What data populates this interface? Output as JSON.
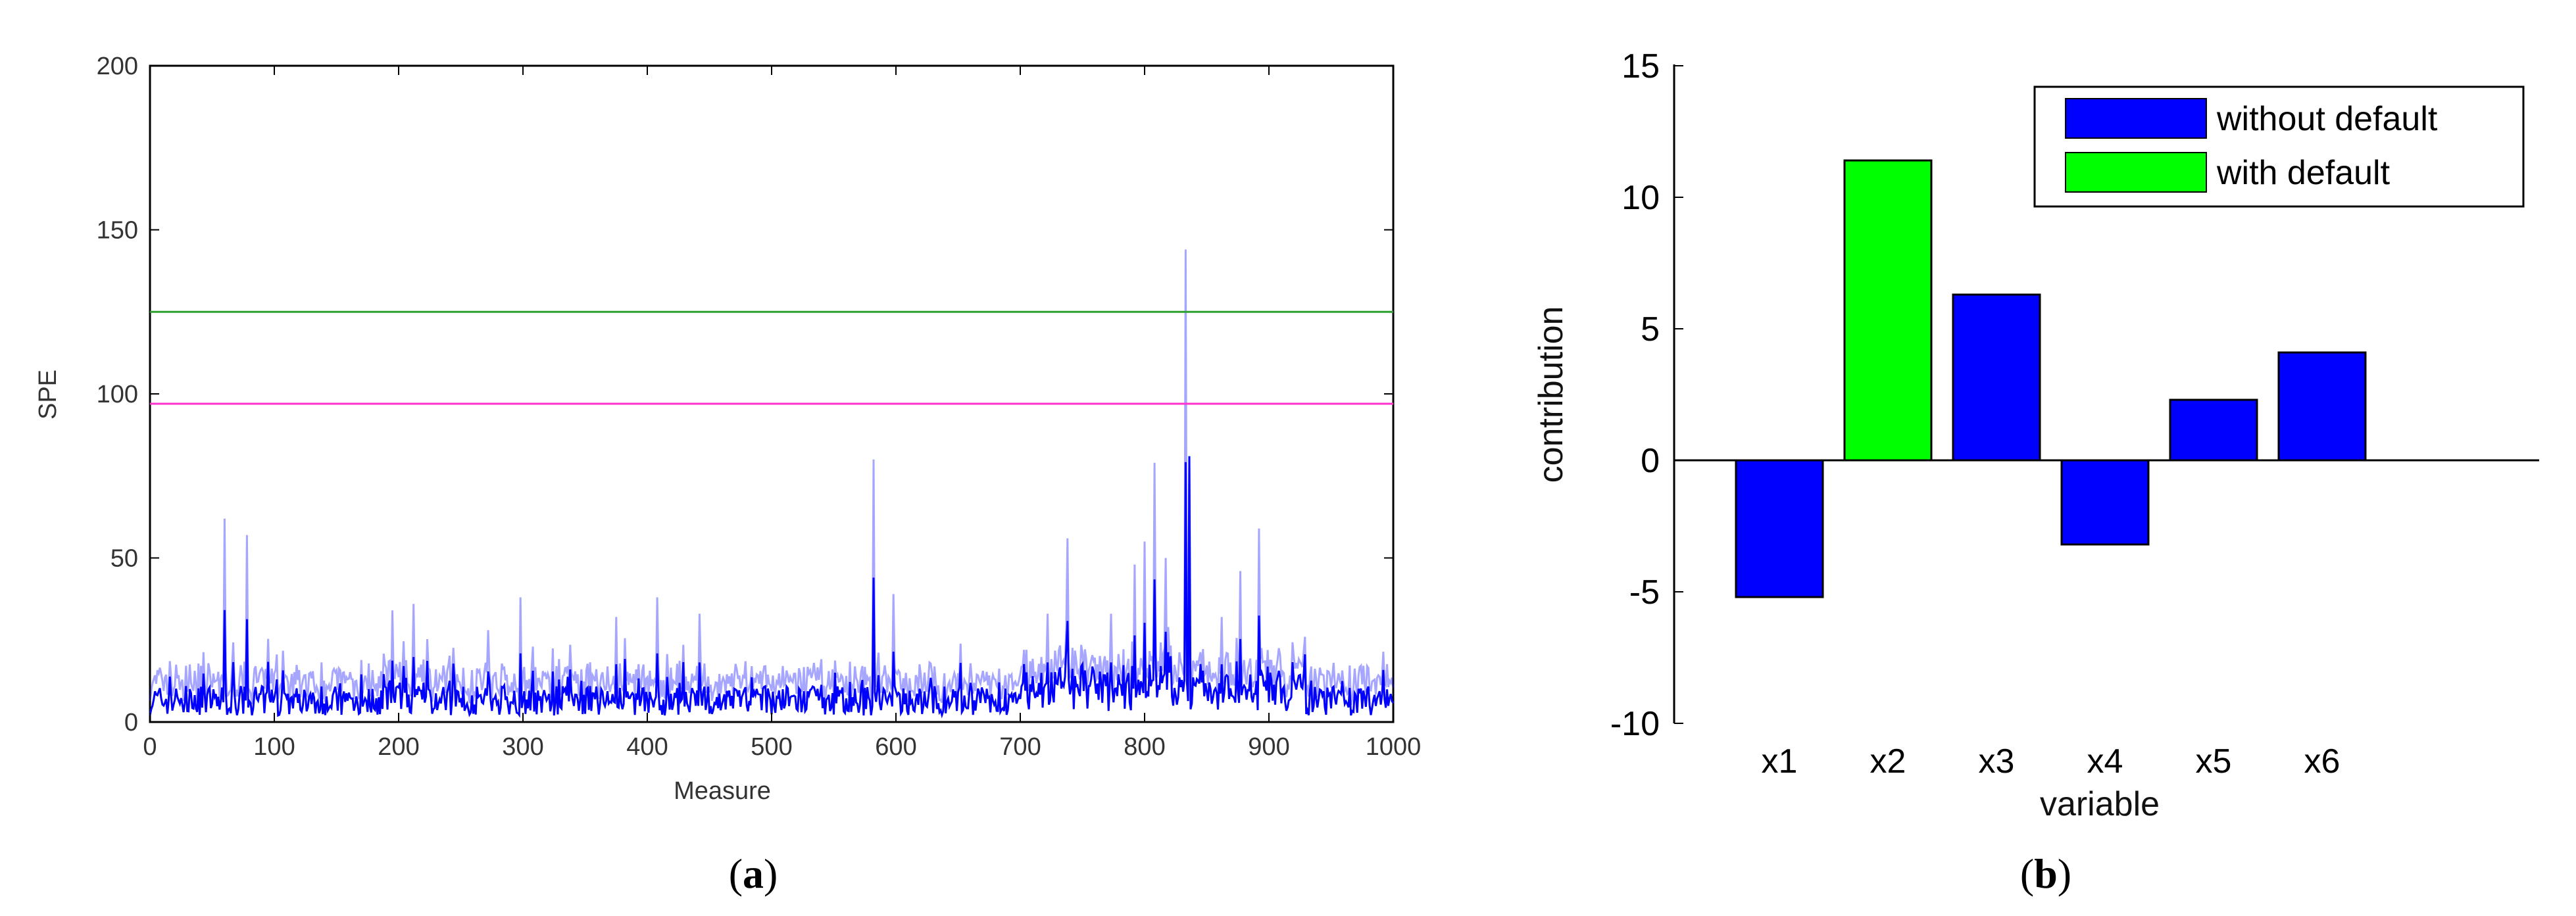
{
  "chart_data": [
    {
      "panel": "a",
      "caption_open": "(",
      "caption_letter": "a",
      "caption_close": ")",
      "type": "line",
      "xlabel": "Measure",
      "ylabel": "SPE",
      "xlim": [
        0,
        1000
      ],
      "ylim": [
        0,
        200
      ],
      "x_ticks": [
        0,
        100,
        200,
        300,
        400,
        500,
        600,
        700,
        800,
        900,
        1000
      ],
      "y_ticks": [
        0,
        50,
        100,
        150,
        200
      ],
      "thresholds": [
        {
          "value": 125,
          "color": "#2ca02c"
        },
        {
          "value": 97,
          "color": "#ff33cc"
        }
      ],
      "series_color": "#0000ff",
      "spikes": [
        {
          "x": 60,
          "y": 62
        },
        {
          "x": 78,
          "y": 57
        },
        {
          "x": 195,
          "y": 34
        },
        {
          "x": 212,
          "y": 36
        },
        {
          "x": 272,
          "y": 28
        },
        {
          "x": 298,
          "y": 38
        },
        {
          "x": 375,
          "y": 32
        },
        {
          "x": 408,
          "y": 38
        },
        {
          "x": 442,
          "y": 33
        },
        {
          "x": 582,
          "y": 80
        },
        {
          "x": 598,
          "y": 39
        },
        {
          "x": 722,
          "y": 33
        },
        {
          "x": 738,
          "y": 56
        },
        {
          "x": 773,
          "y": 33
        },
        {
          "x": 792,
          "y": 48
        },
        {
          "x": 800,
          "y": 55
        },
        {
          "x": 808,
          "y": 79
        },
        {
          "x": 817,
          "y": 50
        },
        {
          "x": 833,
          "y": 144
        },
        {
          "x": 836,
          "y": 81
        },
        {
          "x": 862,
          "y": 32
        },
        {
          "x": 877,
          "y": 46
        },
        {
          "x": 892,
          "y": 59
        },
        {
          "x": 922,
          "y": 18
        }
      ]
    },
    {
      "panel": "b",
      "caption_open": "(",
      "caption_letter": "b",
      "caption_close": ")",
      "type": "bar",
      "xlabel": "variable",
      "ylabel": "contribution",
      "ylim": [
        -10,
        15
      ],
      "y_ticks": [
        -10,
        -5,
        0,
        5,
        10,
        15
      ],
      "categories": [
        "x1",
        "x2",
        "x3",
        "x4",
        "x5",
        "x6"
      ],
      "values": [
        -5.2,
        11.4,
        6.3,
        -3.2,
        2.3,
        4.1
      ],
      "bar_groups": [
        "without default",
        "with default",
        "without default",
        "without default",
        "without default",
        "without default"
      ],
      "legend": [
        {
          "label": "without default",
          "color": "#0000ff"
        },
        {
          "label": "with default",
          "color": "#00ff00"
        }
      ],
      "legend_position": "top-right"
    }
  ]
}
